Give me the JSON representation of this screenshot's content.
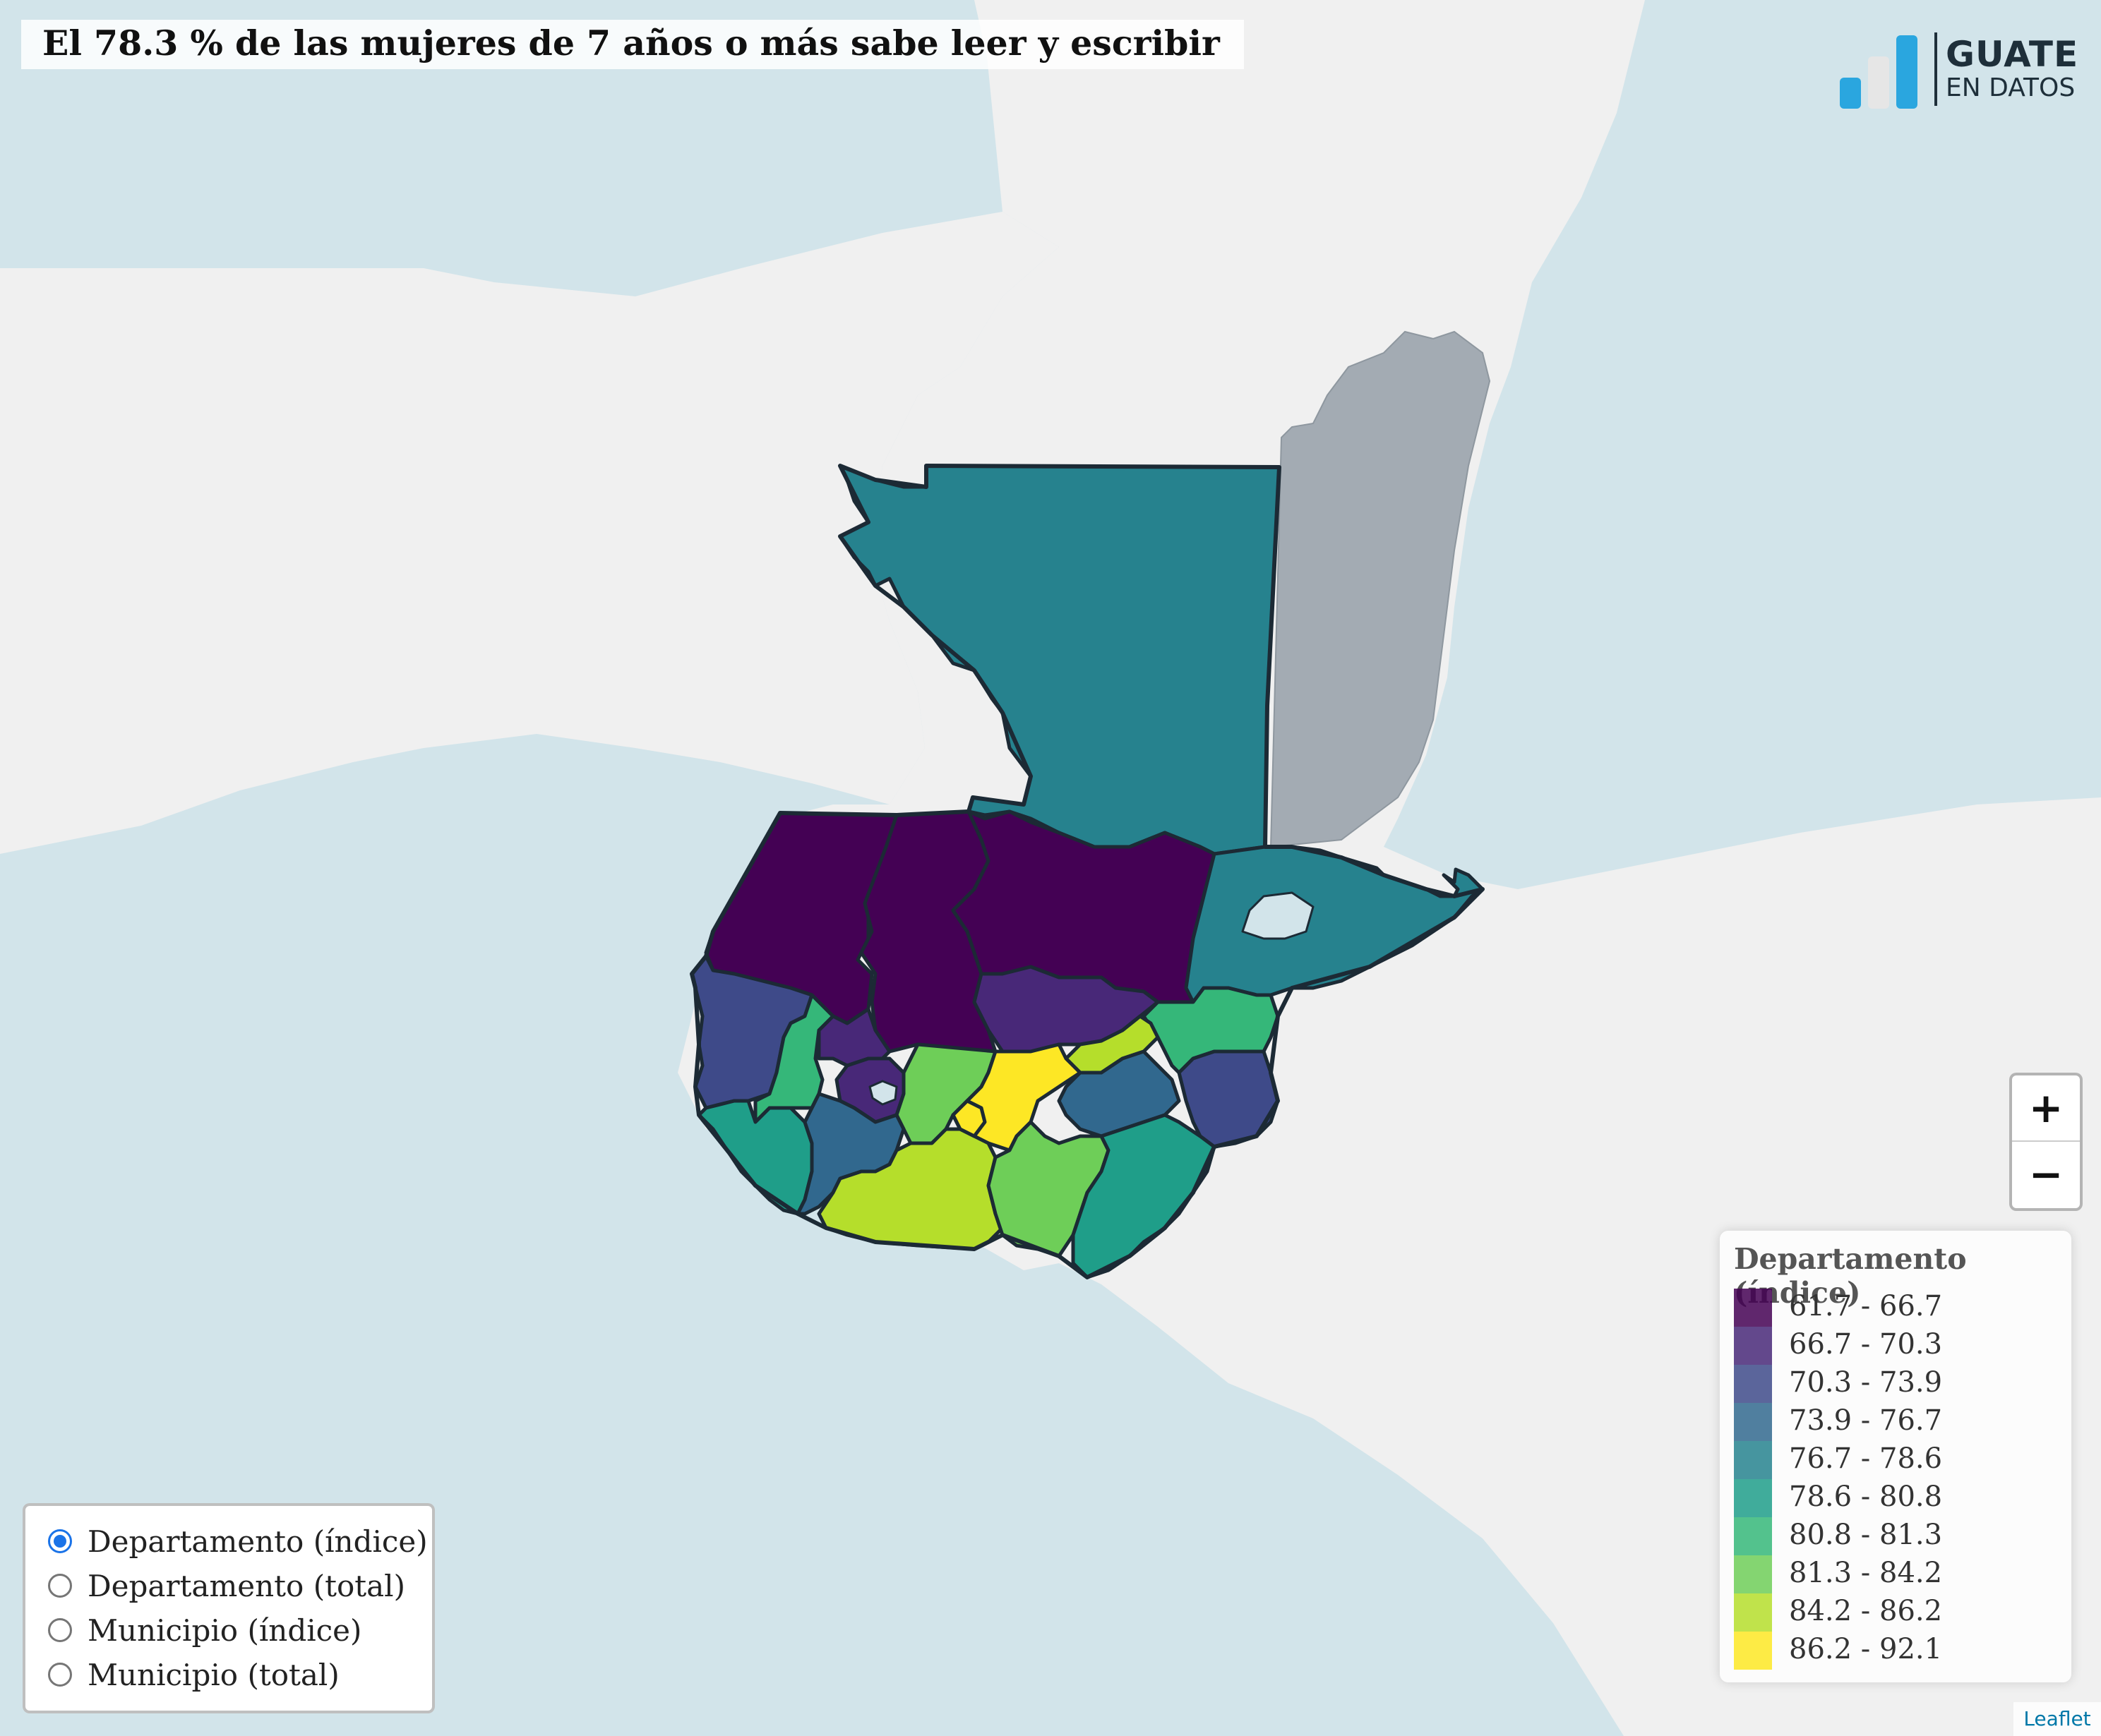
{
  "title": "El 78.3 % de las mujeres de 7 años o más sabe leer y escribir",
  "brand": {
    "line1": "GUATE",
    "line2": "EN DATOS",
    "colors": [
      "#2aa6df",
      "#e6e6e6",
      "#2aa6df"
    ]
  },
  "zoom": {
    "in_label": "+",
    "out_label": "−"
  },
  "legend": {
    "title": "Departamento (índice)",
    "items": [
      {
        "label": "61.7 - 66.7",
        "color": "#440154"
      },
      {
        "label": "66.7 - 70.3",
        "color": "#482878"
      },
      {
        "label": "70.3 - 73.9",
        "color": "#3e4a89"
      },
      {
        "label": "73.9 - 76.7",
        "color": "#31688e"
      },
      {
        "label": "76.7 - 78.6",
        "color": "#26828e"
      },
      {
        "label": "78.6 - 80.8",
        "color": "#1f9e89"
      },
      {
        "label": "80.8 - 81.3",
        "color": "#35b779"
      },
      {
        "label": "81.3 - 84.2",
        "color": "#6ece58"
      },
      {
        "label": "84.2 - 86.2",
        "color": "#b5de2b"
      },
      {
        "label": "86.2 - 92.1",
        "color": "#fde725"
      }
    ]
  },
  "layers": {
    "selected": 0,
    "options": [
      "Departamento (índice)",
      "Departamento (total)",
      "Municipio (índice)",
      "Municipio (total)"
    ]
  },
  "attribution": "Leaflet",
  "map": {
    "background_sea": "#d2e4ea",
    "land": "#f0f0f0",
    "outside_country": "#a3abb3",
    "border": "#1c2a35"
  }
}
